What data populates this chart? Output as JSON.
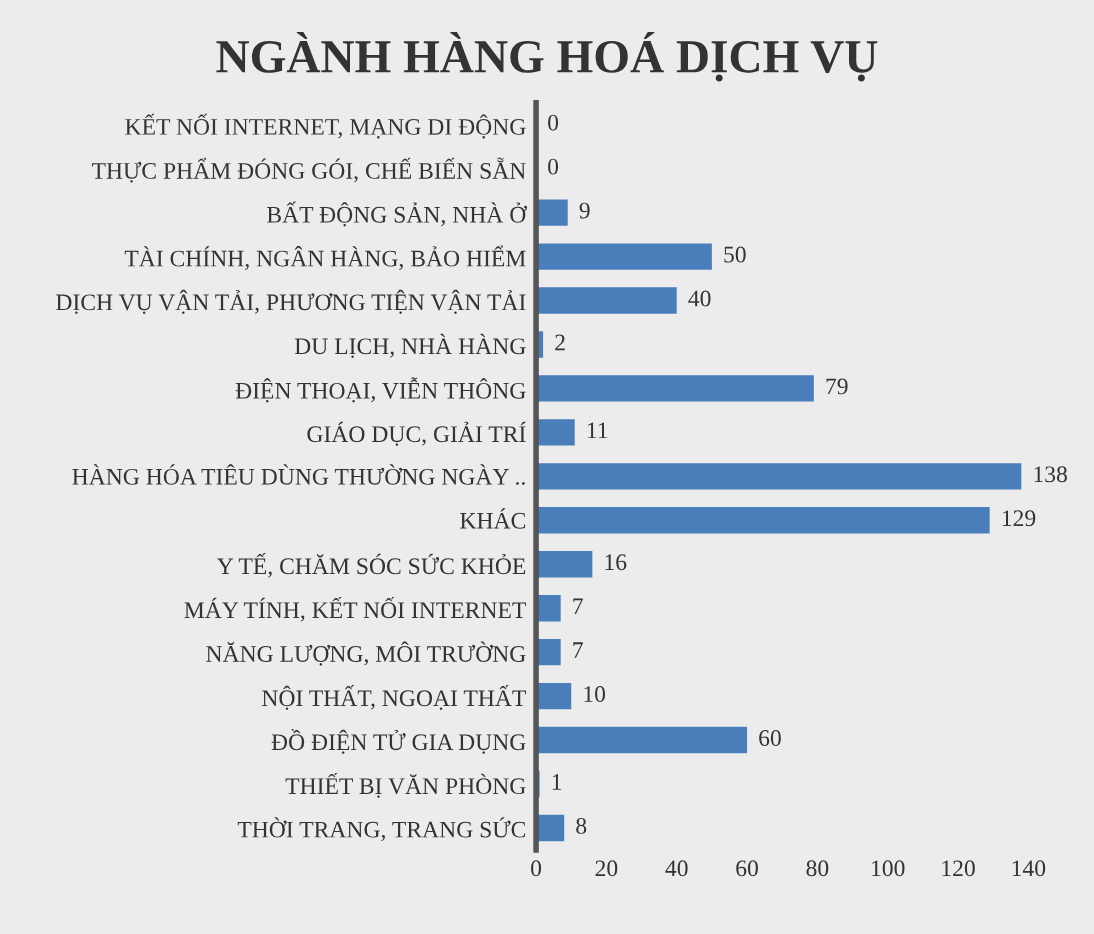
{
  "chart_data": {
    "type": "bar",
    "orientation": "horizontal",
    "title": "NGÀNH HÀNG HOÁ DỊCH VỤ",
    "categories": [
      "KẾT NỐI INTERNET, MẠNG DI ĐỘNG",
      "THỰC PHẨM ĐÓNG GÓI, CHẾ BIẾN SẴN",
      "BẤT ĐỘNG SẢN, NHÀ Ở",
      "TÀI CHÍNH, NGÂN HÀNG, BẢO HIỂM",
      "DỊCH VỤ VẬN TẢI, PHƯƠNG TIỆN VẬN TẢI",
      "DU LỊCH, NHÀ HÀNG",
      "ĐIỆN THOẠI, VIỄN THÔNG",
      "GIÁO DỤC, GIẢI TRÍ",
      "HÀNG HÓA TIÊU DÙNG THƯỜNG NGÀY ..",
      "KHÁC",
      "Y TẾ, CHĂM SÓC SỨC KHỎE",
      "MÁY TÍNH, KẾT NỐI INTERNET",
      "NĂNG LƯỢNG, MÔI TRƯỜNG",
      "NỘI THẤT, NGOẠI THẤT",
      "ĐỒ ĐIỆN TỬ GIA DỤNG",
      "THIẾT BỊ VĂN PHÒNG",
      "THỜI TRANG, TRANG SỨC"
    ],
    "values": [
      0,
      0,
      9,
      50,
      40,
      2,
      79,
      11,
      138,
      129,
      16,
      7,
      7,
      10,
      60,
      1,
      8
    ],
    "color": "#4a7ebb",
    "data_labels": true,
    "xlim": [
      0,
      140
    ],
    "xticks": [
      0,
      20,
      40,
      60,
      80,
      100,
      120,
      140
    ]
  }
}
